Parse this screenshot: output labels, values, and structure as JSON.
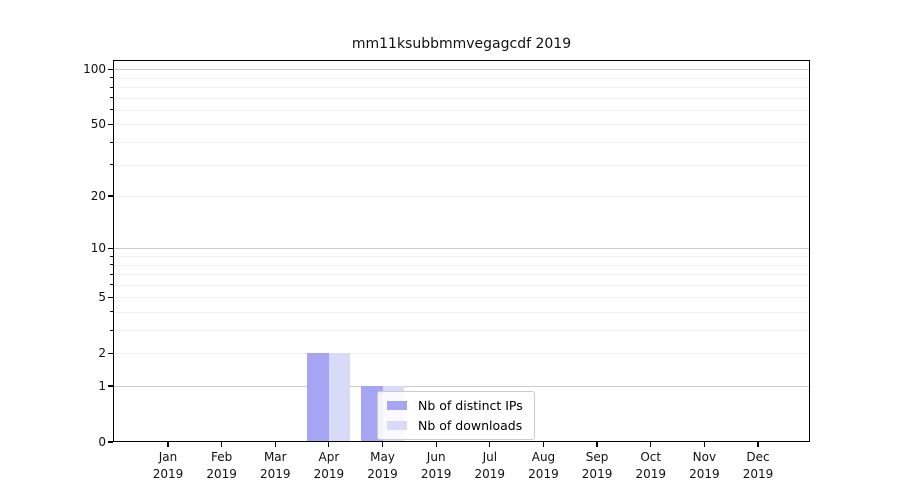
{
  "chart_data": {
    "type": "bar",
    "title": "mm11ksubbmmvegagcdf 2019",
    "categories": [
      "Jan 2019",
      "Feb 2019",
      "Mar 2019",
      "Apr 2019",
      "May 2019",
      "Jun 2019",
      "Jul 2019",
      "Aug 2019",
      "Sep 2019",
      "Oct 2019",
      "Nov 2019",
      "Dec 2019"
    ],
    "series": [
      {
        "name": "Nb of distinct IPs",
        "color": "#a5a5f3",
        "values": [
          0,
          0,
          0,
          2,
          1,
          0,
          0,
          0,
          0,
          0,
          0,
          0
        ]
      },
      {
        "name": "Nb of downloads",
        "color": "#d9d9f8",
        "values": [
          0,
          0,
          0,
          2,
          1,
          0,
          0,
          0,
          0,
          0,
          0,
          0
        ]
      }
    ],
    "xlabel": "",
    "ylabel": "",
    "y_axis": {
      "scale": "log1p",
      "range": [
        0,
        100
      ],
      "tick_labels": [
        "0",
        "1",
        "2",
        "5",
        "10",
        "20",
        "50",
        "100"
      ],
      "tick_values": [
        0,
        1,
        2,
        5,
        10,
        20,
        50,
        100
      ],
      "major_grid_values": [
        1,
        10,
        100
      ],
      "minor_grid_values": [
        2,
        3,
        4,
        5,
        6,
        7,
        8,
        9,
        20,
        30,
        40,
        50,
        60,
        70,
        80,
        90
      ]
    },
    "legend": {
      "position": "inside-bottom",
      "entries": [
        "Nb of distinct IPs",
        "Nb of downloads"
      ]
    },
    "grid": "horizontal-only"
  },
  "colors": {
    "background": "#ffffff",
    "bar_distinct_ips": "#a5a5f3",
    "bar_downloads": "#d9d9f8",
    "grid_major": "#cccccc",
    "grid_minor": "#f0f0f0",
    "spine": "#000000",
    "legend_border": "#cccccc",
    "text": "#111111"
  }
}
